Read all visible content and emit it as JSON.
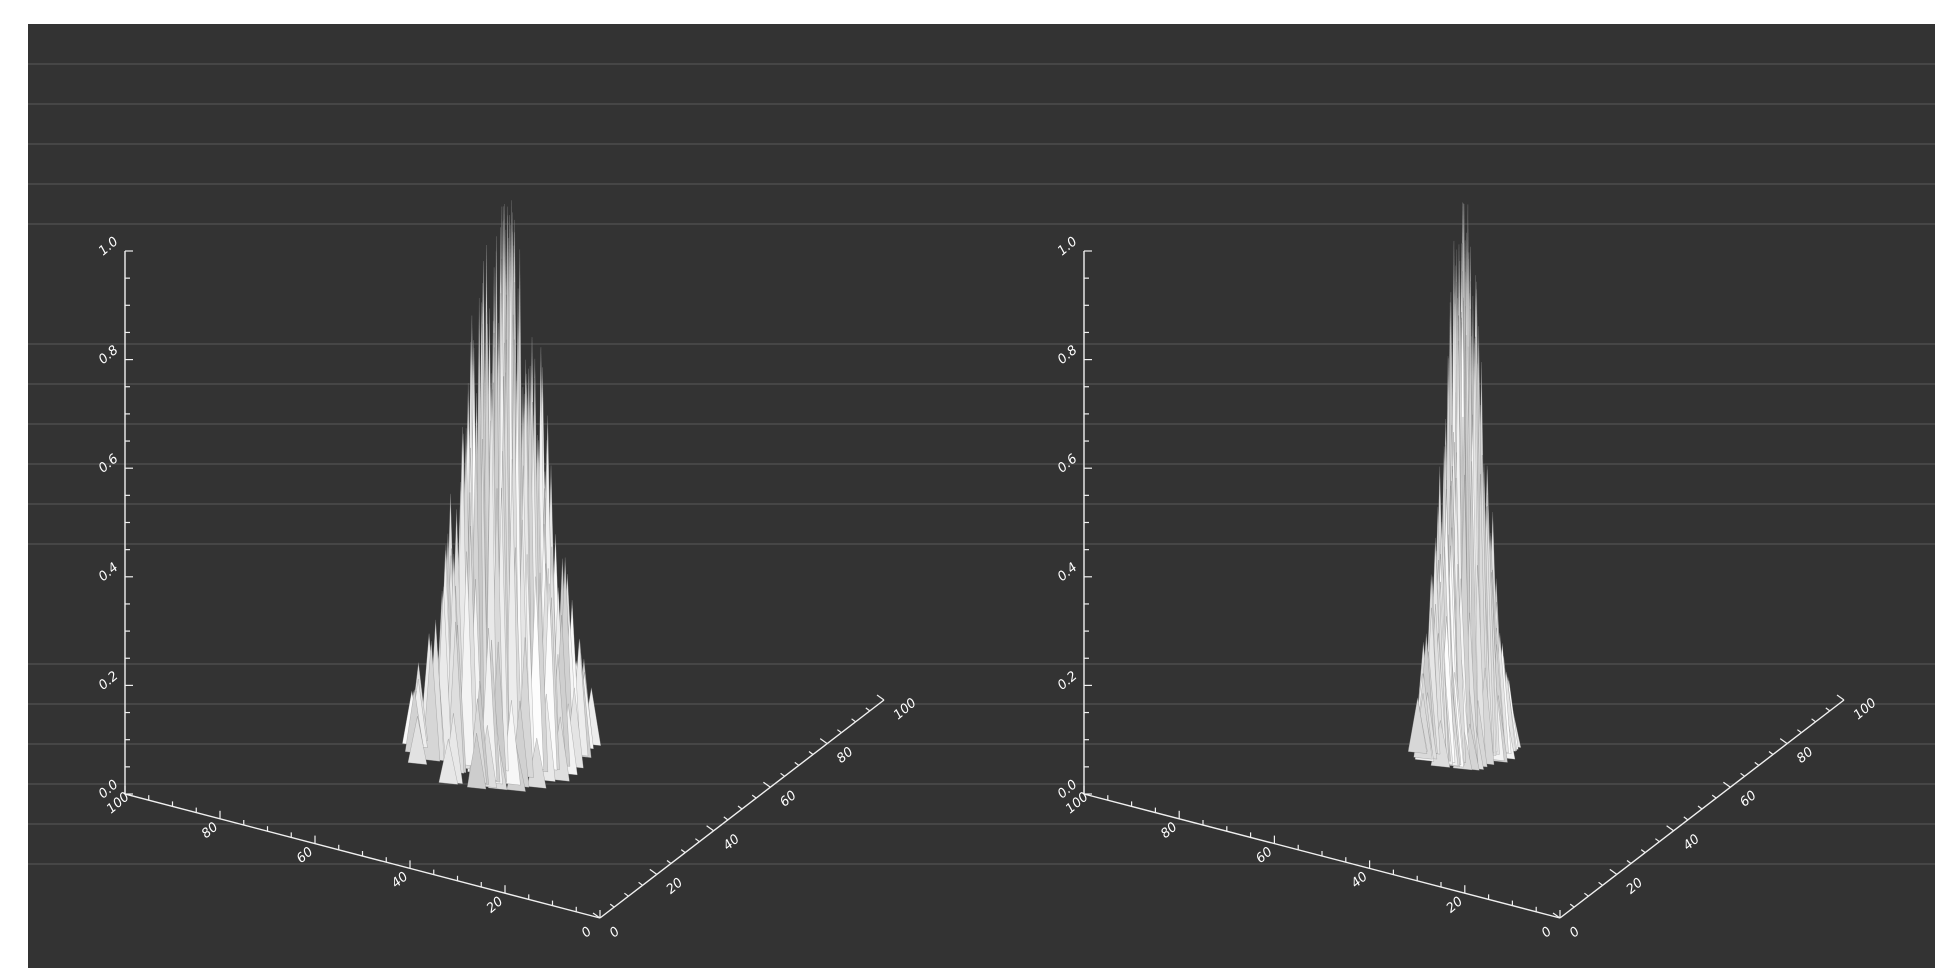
{
  "chart_data": [
    {
      "type": "surface",
      "title": "",
      "xlabel": "",
      "ylabel": "",
      "zlabel": "",
      "x_axis": {
        "range": [
          0,
          100
        ],
        "ticks": [
          "0",
          "20",
          "40",
          "60",
          "80",
          "100"
        ]
      },
      "y_axis": {
        "range": [
          0,
          100
        ],
        "ticks": [
          "0",
          "20",
          "40",
          "60",
          "80",
          "100"
        ]
      },
      "z_axis": {
        "range": [
          0,
          1.0
        ],
        "ticks": [
          "0.0",
          "0.2",
          "0.4",
          "0.6",
          "0.8",
          "1.0"
        ]
      },
      "surface": {
        "shape": "noisy gaussian peak",
        "peak_value": 1.0,
        "center": [
          50,
          50
        ],
        "spread": 8,
        "color": "#f2f2f2"
      },
      "grid": false
    },
    {
      "type": "surface",
      "title": "",
      "xlabel": "",
      "ylabel": "",
      "zlabel": "",
      "x_axis": {
        "range": [
          0,
          100
        ],
        "ticks": [
          "0",
          "20",
          "40",
          "60",
          "80",
          "100"
        ]
      },
      "y_axis": {
        "range": [
          0,
          100
        ],
        "ticks": [
          "0",
          "20",
          "40",
          "60",
          "80",
          "100"
        ]
      },
      "z_axis": {
        "range": [
          0,
          1.0
        ],
        "ticks": [
          "0.0",
          "0.2",
          "0.4",
          "0.6",
          "0.8",
          "1.0"
        ]
      },
      "surface": {
        "shape": "noisy gaussian peak",
        "peak_value": 1.0,
        "center": [
          50,
          50
        ],
        "spread": 4,
        "color": "#f2f2f2"
      },
      "grid": false
    }
  ],
  "colors": {
    "background": "#333333",
    "axes": "#f0f0f0",
    "scanlines": "#5a5a5a"
  }
}
